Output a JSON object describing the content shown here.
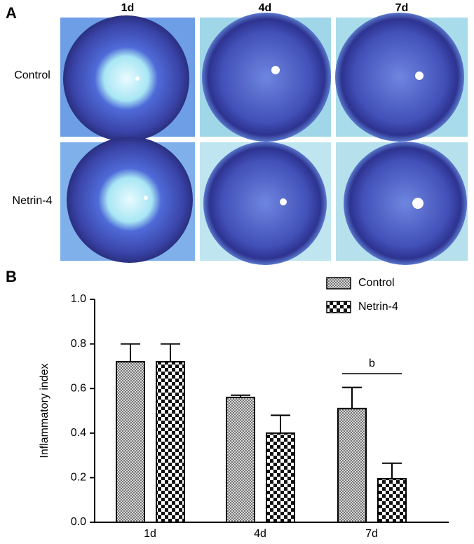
{
  "panel_a": {
    "label": "A",
    "columns": [
      "1d",
      "4d",
      "7d"
    ],
    "rows": [
      "Control",
      "Netrin-4"
    ]
  },
  "chart_data": {
    "type": "bar",
    "panel_label": "B",
    "y_label": "Inflammatory index",
    "categories": [
      "1d",
      "4d",
      "7d"
    ],
    "series": [
      {
        "name": "Control",
        "color": "#999999",
        "values": [
          0.72,
          0.56,
          0.51
        ],
        "errors": [
          0.08,
          0.01,
          0.095
        ]
      },
      {
        "name": "Netrin-4",
        "color": "#111111",
        "values": [
          0.72,
          0.4,
          0.195
        ],
        "errors": [
          0.08,
          0.08,
          0.07
        ]
      }
    ],
    "ylim": [
      0,
      1.0
    ],
    "yticks": [
      {
        "value": 0,
        "label": "0.0"
      },
      0.2,
      0.4,
      0.6,
      0.8,
      {
        "value": 1.0,
        "label": "1.0"
      }
    ],
    "legend": "upper right",
    "annotations": [
      {
        "text": "b",
        "category": 2
      }
    ]
  }
}
